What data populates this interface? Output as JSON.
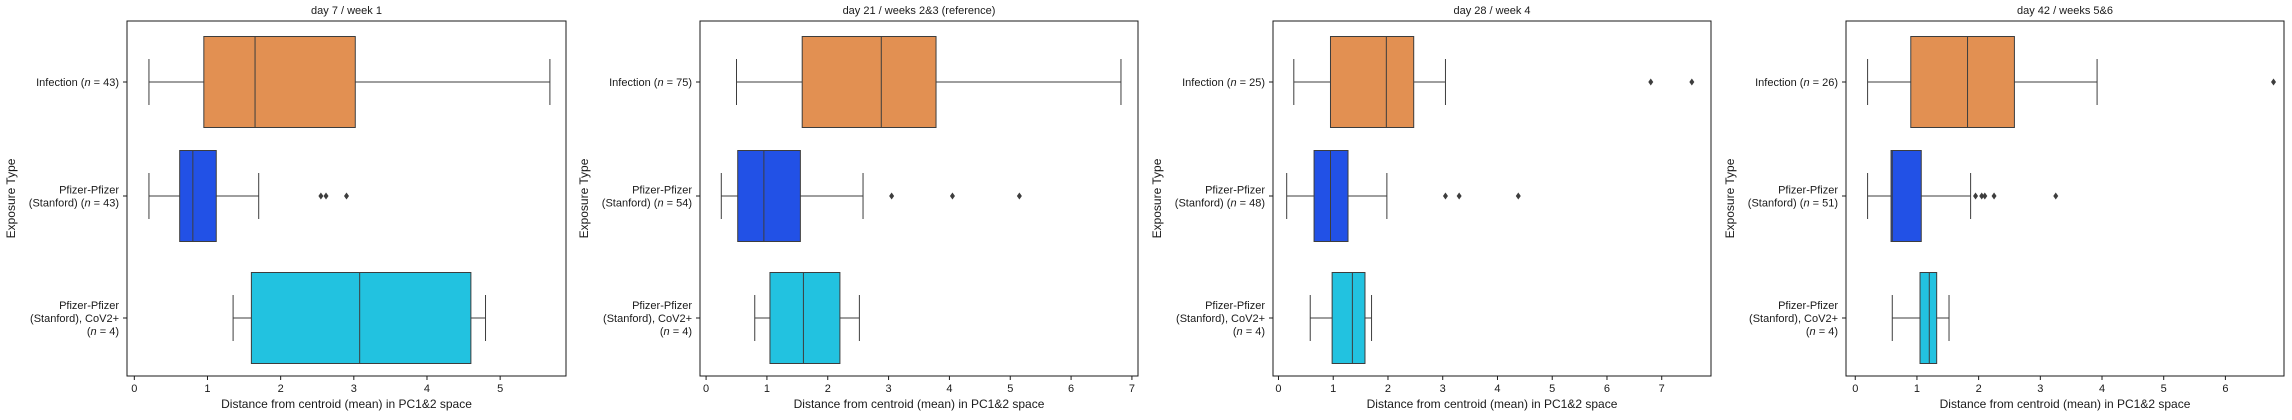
{
  "chart_data": [
    {
      "type": "boxplot",
      "title": "day 7 / week 1",
      "xlabel": "Distance from centroid (mean) in PC1&2 space",
      "ylabel": "Exposure Type",
      "xlim": [
        -0.1,
        5.9
      ],
      "xticks": [
        0,
        1,
        2,
        3,
        4,
        5
      ],
      "grid": false,
      "categories": [
        {
          "label": [
            "Infection (n = 43)"
          ],
          "color": "#e29052",
          "whisker_low": 0.2,
          "q1": 0.95,
          "median": 1.65,
          "q3": 3.02,
          "whisker_high": 5.68,
          "outliers": []
        },
        {
          "label": [
            "Pfizer-Pfizer",
            "(Stanford) (n = 43)"
          ],
          "color": "#2251e6",
          "whisker_low": 0.2,
          "q1": 0.62,
          "median": 0.8,
          "q3": 1.12,
          "whisker_high": 1.7,
          "outliers": [
            2.55,
            2.62,
            2.9
          ]
        },
        {
          "label": [
            "Pfizer-Pfizer",
            "(Stanford), CoV2+",
            "(n = 4)"
          ],
          "color": "#22c2e0",
          "whisker_low": 1.35,
          "q1": 1.6,
          "median": 3.08,
          "q3": 4.6,
          "whisker_high": 4.8,
          "outliers": []
        }
      ]
    },
    {
      "type": "boxplot",
      "title": "day 21 / weeks 2&3 (reference)",
      "xlabel": "Distance from centroid (mean) in PC1&2 space",
      "ylabel": "Exposure Type",
      "xlim": [
        -0.1,
        7.1
      ],
      "xticks": [
        0,
        1,
        2,
        3,
        4,
        5,
        6,
        7
      ],
      "grid": false,
      "categories": [
        {
          "label": [
            "Infection (n = 75)"
          ],
          "color": "#e29052",
          "whisker_low": 0.5,
          "q1": 1.58,
          "median": 2.88,
          "q3": 3.78,
          "whisker_high": 6.82,
          "outliers": []
        },
        {
          "label": [
            "Pfizer-Pfizer",
            "(Stanford) (n = 54)"
          ],
          "color": "#2251e6",
          "whisker_low": 0.25,
          "q1": 0.52,
          "median": 0.95,
          "q3": 1.55,
          "whisker_high": 2.58,
          "outliers": [
            3.05,
            4.05,
            5.15
          ]
        },
        {
          "label": [
            "Pfizer-Pfizer",
            "(Stanford), CoV2+",
            "(n = 4)"
          ],
          "color": "#22c2e0",
          "whisker_low": 0.8,
          "q1": 1.05,
          "median": 1.6,
          "q3": 2.2,
          "whisker_high": 2.52,
          "outliers": []
        }
      ]
    },
    {
      "type": "boxplot",
      "title": "day 28 / week 4",
      "xlabel": "Distance from centroid (mean) in PC1&2 space",
      "ylabel": "Exposure Type",
      "xlim": [
        -0.1,
        7.9
      ],
      "xticks": [
        0,
        1,
        2,
        3,
        4,
        5,
        6,
        7
      ],
      "grid": false,
      "categories": [
        {
          "label": [
            "Infection (n = 25)"
          ],
          "color": "#e29052",
          "whisker_low": 0.28,
          "q1": 0.95,
          "median": 1.97,
          "q3": 2.47,
          "whisker_high": 3.05,
          "outliers": [
            6.8,
            7.55
          ]
        },
        {
          "label": [
            "Pfizer-Pfizer",
            "(Stanford) (n = 48)"
          ],
          "color": "#2251e6",
          "whisker_low": 0.15,
          "q1": 0.65,
          "median": 0.95,
          "q3": 1.27,
          "whisker_high": 1.98,
          "outliers": [
            3.05,
            3.3,
            4.38
          ]
        },
        {
          "label": [
            "Pfizer-Pfizer",
            "(Stanford), CoV2+",
            "(n = 4)"
          ],
          "color": "#22c2e0",
          "whisker_low": 0.58,
          "q1": 0.98,
          "median": 1.35,
          "q3": 1.58,
          "whisker_high": 1.7,
          "outliers": []
        }
      ]
    },
    {
      "type": "boxplot",
      "title": "day 42 / weeks 5&6",
      "xlabel": "Distance from centroid (mean) in PC1&2 space",
      "ylabel": "Exposure Type",
      "xlim": [
        -0.15,
        6.95
      ],
      "xticks": [
        0,
        1,
        2,
        3,
        4,
        5,
        6
      ],
      "grid": false,
      "categories": [
        {
          "label": [
            "Infection (n = 26)"
          ],
          "color": "#e29052",
          "whisker_low": 0.2,
          "q1": 0.9,
          "median": 1.82,
          "q3": 2.58,
          "whisker_high": 3.92,
          "outliers": [
            6.78
          ]
        },
        {
          "label": [
            "Pfizer-Pfizer",
            "(Stanford) (n = 51)"
          ],
          "color": "#2251e6",
          "whisker_low": 0.2,
          "q1": 0.58,
          "median": 0.6,
          "q3": 1.07,
          "whisker_high": 1.87,
          "outliers": [
            1.95,
            2.05,
            2.1,
            2.25,
            3.25
          ]
        },
        {
          "label": [
            "Pfizer-Pfizer",
            "(Stanford), CoV2+",
            "(n = 4)"
          ],
          "color": "#22c2e0",
          "whisker_low": 0.6,
          "q1": 1.05,
          "median": 1.2,
          "q3": 1.32,
          "whisker_high": 1.52,
          "outliers": []
        }
      ]
    }
  ]
}
